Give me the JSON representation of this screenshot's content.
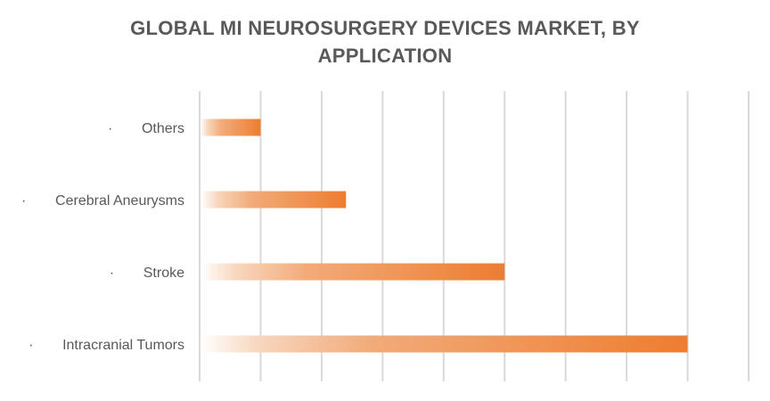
{
  "chart_data": {
    "type": "bar",
    "orientation": "horizontal",
    "title": "GLOBAL MI NEUROSURGERY DEVICES MARKET, BY APPLICATION",
    "title_lines": [
      "GLOBAL MI NEUROSURGERY DEVICES MARKET, BY",
      "APPLICATION"
    ],
    "categories": [
      "Others",
      "Cerebral Aneurysms",
      "Stroke",
      "Intracranial Tumors"
    ],
    "bullet": "·",
    "values": [
      1,
      2.4,
      5,
      8
    ],
    "xlim": [
      0,
      9
    ],
    "x_tick_labels_shown": false,
    "grid": "vertical",
    "legend": "none",
    "bar_color": "#ED7D31",
    "bar_fill": "gradient from white (left) to orange (right)",
    "xlabel": "",
    "ylabel": ""
  }
}
